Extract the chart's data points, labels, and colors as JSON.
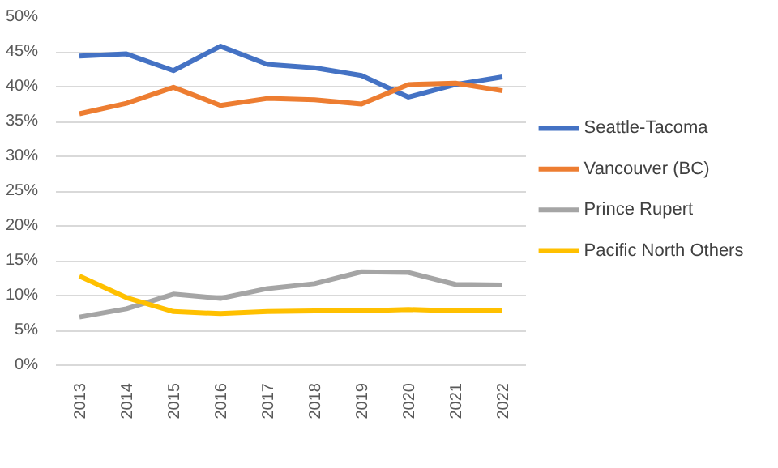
{
  "chart_data": {
    "type": "line",
    "categories": [
      "2013",
      "2014",
      "2015",
      "2016",
      "2017",
      "2018",
      "2019",
      "2020",
      "2021",
      "2022"
    ],
    "series": [
      {
        "name": "Seattle-Tacoma",
        "color": "#4472c4",
        "values": [
          44.4,
          44.7,
          42.3,
          45.8,
          43.2,
          42.7,
          41.6,
          38.5,
          40.3,
          41.4
        ]
      },
      {
        "name": "Vancouver (BC)",
        "color": "#ed7d31",
        "values": [
          36.1,
          37.6,
          39.9,
          37.3,
          38.3,
          38.1,
          37.5,
          40.3,
          40.5,
          39.4
        ]
      },
      {
        "name": "Prince Rupert",
        "color": "#a5a5a5",
        "values": [
          6.9,
          8.1,
          10.2,
          9.6,
          11.0,
          11.7,
          13.4,
          13.3,
          11.6,
          11.5
        ]
      },
      {
        "name": "Pacific North Others",
        "color": "#ffc000",
        "values": [
          12.8,
          9.7,
          7.7,
          7.4,
          7.7,
          7.8,
          7.8,
          8.0,
          7.8,
          7.8
        ]
      }
    ],
    "ylim": [
      0,
      50
    ],
    "yticks": [
      {
        "value": 0,
        "label": "0%"
      },
      {
        "value": 5,
        "label": "5%"
      },
      {
        "value": 10,
        "label": "10%"
      },
      {
        "value": 15,
        "label": "15%"
      },
      {
        "value": 20,
        "label": "20%"
      },
      {
        "value": 25,
        "label": "25%"
      },
      {
        "value": 30,
        "label": "30%"
      },
      {
        "value": 35,
        "label": "35%"
      },
      {
        "value": 40,
        "label": "40%"
      },
      {
        "value": 45,
        "label": "45%"
      },
      {
        "value": 50,
        "label": "50%"
      }
    ],
    "grid": "y",
    "legend": "right",
    "marker": "none",
    "line_style": "solid"
  }
}
